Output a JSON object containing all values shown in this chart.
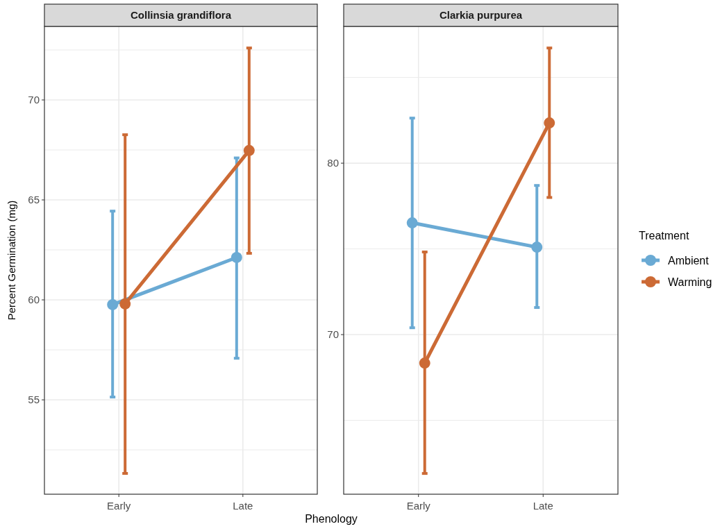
{
  "chart_data": [
    {
      "type": "line",
      "title": "Collinsia grandiflora",
      "xlabel": "Phenology",
      "ylabel": "Percent Germination (mg)",
      "categories": [
        "Early",
        "Late"
      ],
      "series": [
        {
          "color": "#6aaad4",
          "values": [
            59.76,
            62.12
          ],
          "errors": [
            [
              55.14,
              64.44
            ],
            [
              57.08,
              67.1
            ]
          ]
        },
        {
          "color": "#cc6a35",
          "values": [
            59.8,
            67.47
          ],
          "errors": [
            [
              51.32,
              68.26
            ],
            [
              62.33,
              72.6
            ]
          ]
        }
      ],
      "ylim": [
        50.28,
        73.68
      ],
      "yticks": [
        {
          "value": 52.5,
          "label": null
        },
        55,
        {
          "value": 57.5,
          "label": null
        },
        60,
        {
          "value": 62.5,
          "label": null
        },
        65,
        {
          "value": 67.5,
          "label": null
        },
        70,
        {
          "value": 72.5,
          "label": null
        }
      ],
      "grid": true,
      "marker": "circle",
      "line_style": "solid",
      "legend": false
    },
    {
      "type": "line",
      "title": "Clarkia purpurea",
      "legend_title": "Treatment",
      "categories": [
        "Early",
        "Late"
      ],
      "series": [
        {
          "name": "Ambient",
          "color": "#6aaad4",
          "values": [
            76.52,
            75.1
          ],
          "errors": [
            [
              70.4,
              82.63
            ],
            [
              71.58,
              78.7
            ]
          ]
        },
        {
          "name": "Warming",
          "color": "#cc6a35",
          "values": [
            68.34,
            82.35
          ],
          "errors": [
            [
              61.9,
              74.82
            ],
            [
              78.0,
              86.72
            ]
          ]
        }
      ],
      "ylim": [
        60.69,
        87.98
      ],
      "yticks": [
        {
          "value": 65,
          "label": null
        },
        70,
        {
          "value": 75,
          "label": null
        },
        80,
        {
          "value": 85,
          "label": null
        }
      ],
      "grid": true,
      "marker": "circle",
      "line_style": "solid",
      "legend": "right"
    }
  ]
}
